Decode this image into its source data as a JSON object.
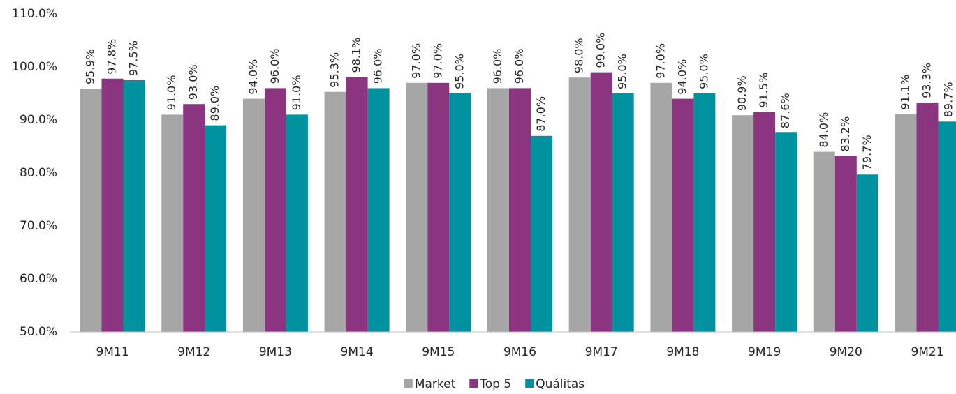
{
  "chart_data": {
    "type": "bar",
    "categories": [
      "9M11",
      "9M12",
      "9M13",
      "9M14",
      "9M15",
      "9M16",
      "9M17",
      "9M18",
      "9M19",
      "9M20",
      "9M21"
    ],
    "series": [
      {
        "name": "Market",
        "color": "#a6a6a6",
        "values": [
          95.9,
          91.0,
          94.0,
          95.3,
          97.0,
          96.0,
          98.0,
          97.0,
          90.9,
          84.0,
          91.1
        ],
        "value_labels": [
          "95.9%",
          "91.0%",
          "94.0%",
          "95.3%",
          "97.0%",
          "96.0%",
          "98.0%",
          "97.0%",
          "90.9%",
          "84.0%",
          "91.1%"
        ]
      },
      {
        "name": "Top 5",
        "color": "#8b3581",
        "values": [
          97.8,
          93.0,
          96.0,
          98.1,
          97.0,
          96.0,
          99.0,
          94.0,
          91.5,
          83.2,
          93.3
        ],
        "value_labels": [
          "97.8%",
          "93.0%",
          "96.0%",
          "98.1%",
          "97.0%",
          "96.0%",
          "99.0%",
          "94.0%",
          "91.5%",
          "83.2%",
          "93.3%"
        ]
      },
      {
        "name": "Quálitas",
        "color": "#00939f",
        "values": [
          97.5,
          89.0,
          91.0,
          96.0,
          95.0,
          87.0,
          95.0,
          95.0,
          87.6,
          79.7,
          89.7
        ],
        "value_labels": [
          "97.5%",
          "89.0%",
          "91.0%",
          "96.0%",
          "95.0%",
          "87.0%",
          "95.0%",
          "95.0%",
          "87.6%",
          "79.7%",
          "89.7%"
        ]
      }
    ],
    "ylim": [
      50,
      110
    ],
    "yticks": [
      {
        "value": 50,
        "label": "50.0%"
      },
      {
        "value": 60,
        "label": "60.0%"
      },
      {
        "value": 70,
        "label": "70.0%"
      },
      {
        "value": 80,
        "label": "80.0%"
      },
      {
        "value": 90,
        "label": "90.0%"
      },
      {
        "value": 100,
        "label": "100.0%"
      },
      {
        "value": 110,
        "label": "110.0%"
      }
    ],
    "grid": false,
    "legend": "bottom"
  }
}
